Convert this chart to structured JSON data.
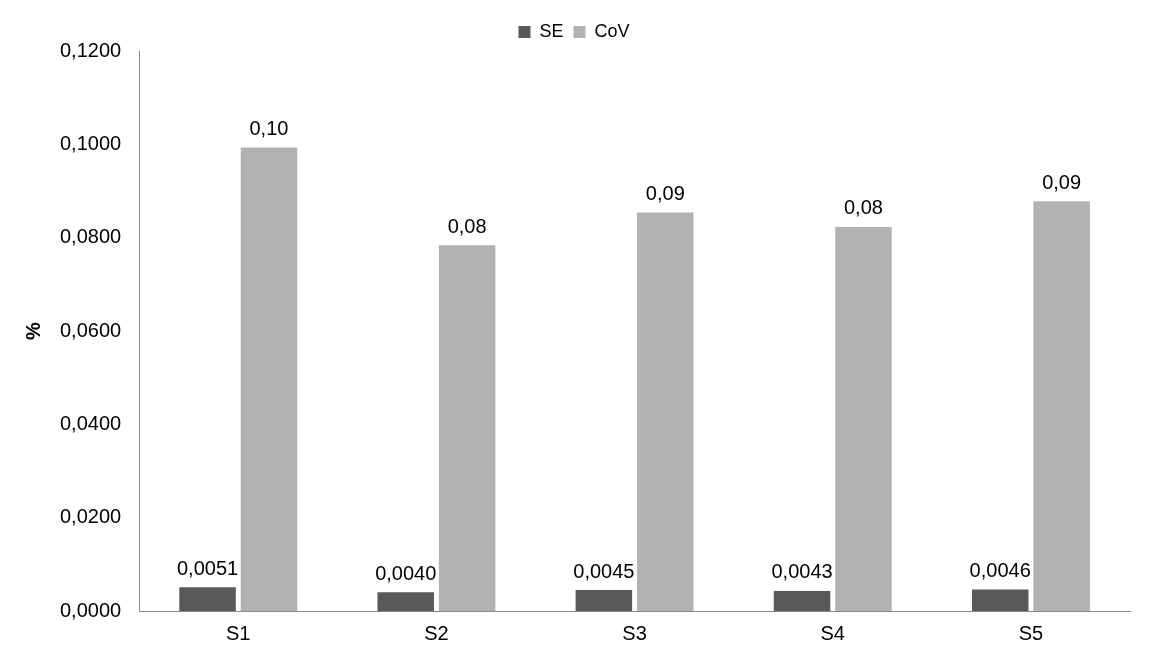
{
  "chart_data": {
    "type": "bar",
    "ylabel": "%",
    "categories": [
      "S1",
      "S2",
      "S3",
      "S4",
      "S5"
    ],
    "series": [
      {
        "name": "SE",
        "color": "#595959",
        "values": [
          0.0051,
          0.004,
          0.0045,
          0.0043,
          0.0046
        ],
        "value_labels": [
          "0,0051",
          "0,0040",
          "0,0045",
          "0,0043",
          "0,0046"
        ]
      },
      {
        "name": "CoV",
        "color": "#b2b2b2",
        "values": [
          0.0993,
          0.0784,
          0.0854,
          0.0823,
          0.0878
        ],
        "value_labels": [
          "0,10",
          "0,08",
          "0,09",
          "0,08",
          "0,09"
        ]
      }
    ],
    "ylim": [
      0,
      0.12
    ],
    "yticks": [
      {
        "value": 0,
        "label": "0,0000"
      },
      {
        "value": 0.02,
        "label": "0,0200"
      },
      {
        "value": 0.04,
        "label": "0,0400"
      },
      {
        "value": 0.06,
        "label": "0,0600"
      },
      {
        "value": 0.08,
        "label": "0,0800"
      },
      {
        "value": 0.1,
        "label": "0,1000"
      },
      {
        "value": 0.12,
        "label": "0,1200"
      }
    ],
    "grid": false,
    "legend": "top"
  }
}
